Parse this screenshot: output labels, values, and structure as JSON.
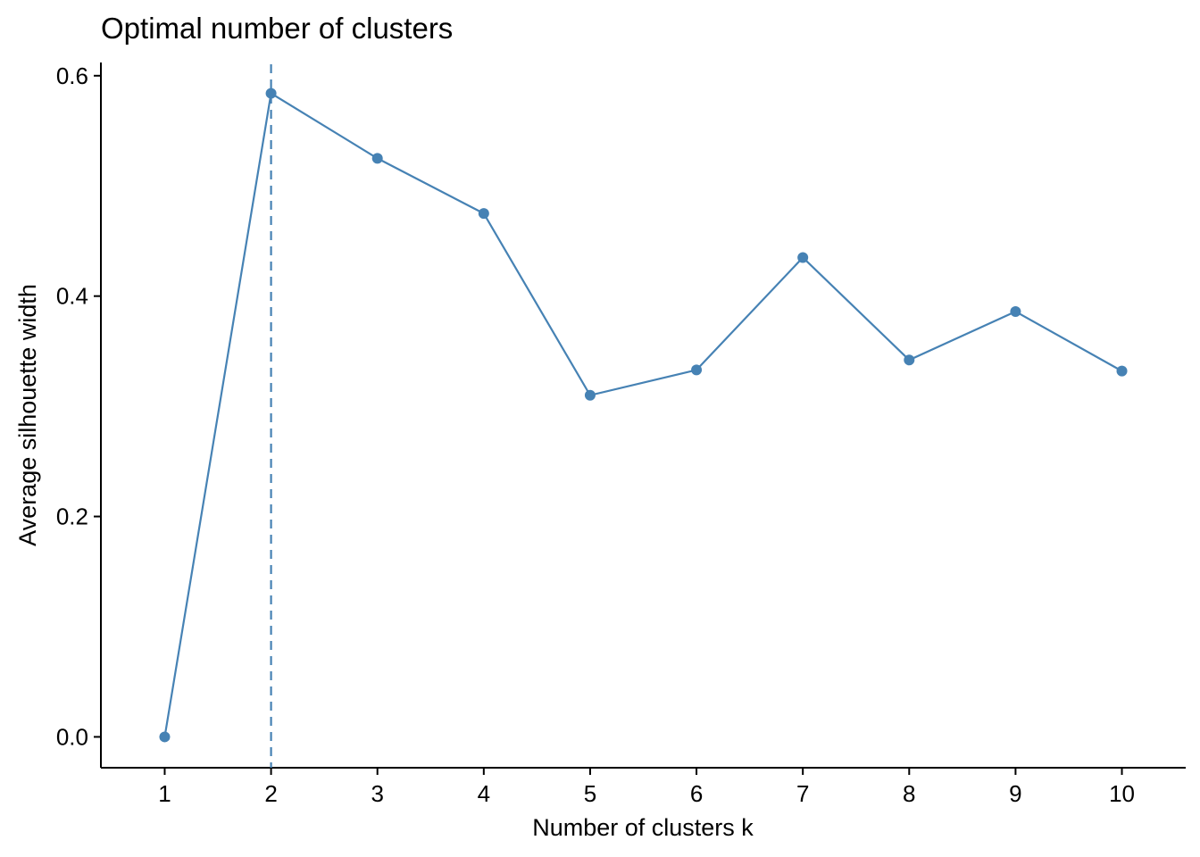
{
  "chart_data": {
    "type": "line",
    "title": "Optimal number of clusters",
    "xlabel": "Number of clusters k",
    "ylabel": "Average silhouette width",
    "x": [
      1,
      2,
      3,
      4,
      5,
      6,
      7,
      8,
      9,
      10
    ],
    "series": [
      {
        "values": [
          0.0,
          0.584,
          0.525,
          0.475,
          0.31,
          0.333,
          0.435,
          0.342,
          0.386,
          0.332
        ]
      }
    ],
    "optimal_k": 2,
    "xlim": [
      0.4,
      10.6
    ],
    "ylim": [
      -0.028,
      0.612
    ],
    "yticks": [
      0.0,
      0.2,
      0.4,
      0.6
    ],
    "ytick_labels": [
      "0.0",
      "0.2",
      "0.4",
      "0.6"
    ],
    "xticks": [
      1,
      2,
      3,
      4,
      5,
      6,
      7,
      8,
      9,
      10
    ],
    "xtick_labels": [
      "1",
      "2",
      "3",
      "4",
      "5",
      "6",
      "7",
      "8",
      "9",
      "10"
    ],
    "grid": false,
    "legend": "none",
    "colors": {
      "line": "#4682B4",
      "axis": "#000000"
    }
  }
}
